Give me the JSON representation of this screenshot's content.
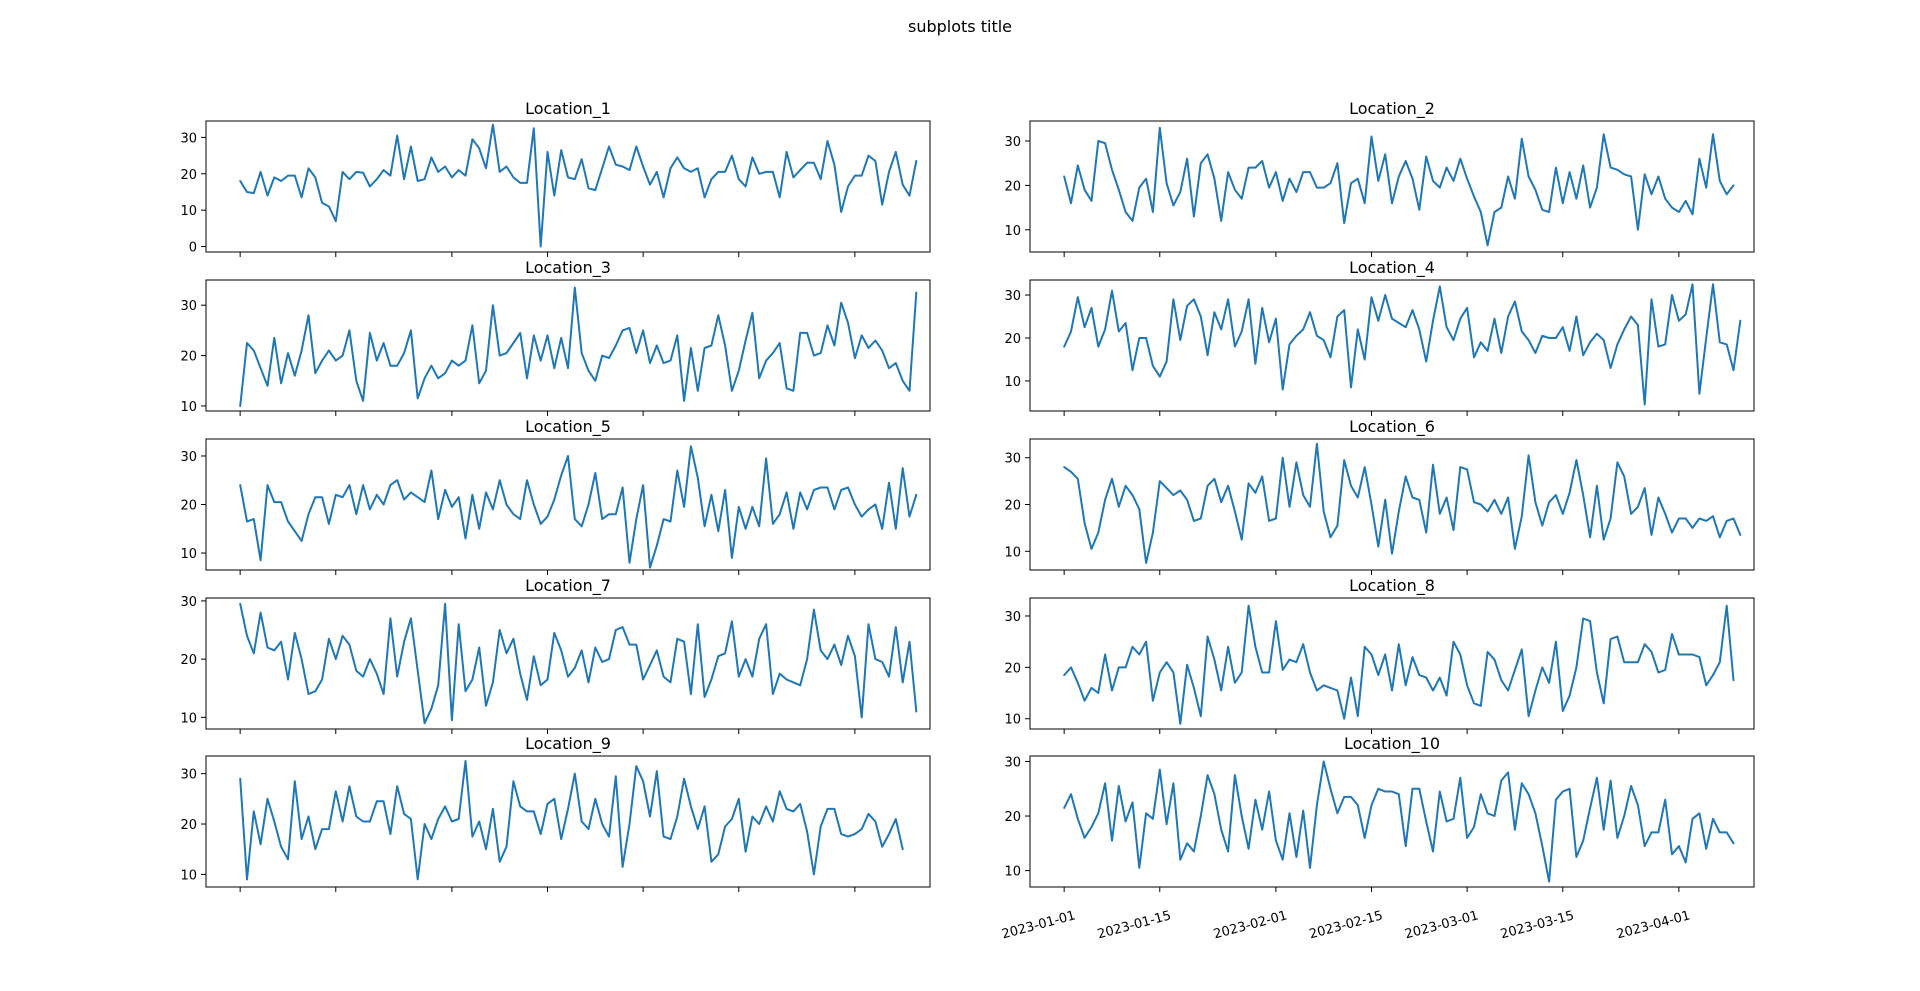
{
  "figure": {
    "suptitle": "subplots title"
  },
  "colors": {
    "series": "#1f77b4"
  },
  "chart_data": [
    {
      "type": "line",
      "title": "Location_1",
      "x_start": "2023-01-01",
      "x_step_days": 1,
      "xlim": [
        "2022-12-27",
        "2023-04-12"
      ],
      "ylim": [
        -1.5,
        34.5
      ],
      "yticks": [
        0,
        10,
        20,
        30
      ],
      "xticks": [
        "2023-01-01",
        "2023-01-15",
        "2023-02-01",
        "2023-02-15",
        "2023-03-01",
        "2023-03-15",
        "2023-04-01"
      ],
      "show_xticklabels": false,
      "values": [
        18,
        15,
        14.7,
        20.5,
        14,
        19,
        18,
        19.5,
        19.5,
        13.5,
        21.5,
        19,
        12,
        11,
        7,
        20.5,
        18.5,
        20.5,
        20.3,
        16.5,
        18.5,
        21,
        19.5,
        30.5,
        18.5,
        27.5,
        18,
        18.5,
        24.5,
        20.5,
        22,
        19,
        21,
        19.5,
        29.5,
        27,
        21.5,
        33.5,
        20.5,
        22,
        19,
        17.5,
        17.5,
        32.5,
        0,
        26,
        14,
        26.5,
        19,
        18.5,
        24,
        16,
        15.5,
        21.5,
        27.5,
        22.5,
        22,
        21,
        27.5,
        22,
        17,
        20.5,
        13.5,
        21.5,
        24.5,
        21.5,
        20.5,
        21.5,
        13.5,
        18.5,
        20.5,
        20.5,
        25,
        18.5,
        16.5,
        24.5,
        20,
        20.5,
        20.5,
        13.5,
        26,
        19,
        21,
        23,
        23,
        18.5,
        29,
        22.5,
        9.5,
        16.5,
        19.5,
        19.5,
        25,
        23.5,
        11.5,
        20.5,
        26,
        17,
        14,
        23.5
      ]
    },
    {
      "type": "line",
      "title": "Location_2",
      "x_start": "2023-01-01",
      "x_step_days": 1,
      "xlim": [
        "2022-12-27",
        "2023-04-12"
      ],
      "ylim": [
        5,
        34.5
      ],
      "yticks": [
        10,
        20,
        30
      ],
      "xticks": [
        "2023-01-01",
        "2023-01-15",
        "2023-02-01",
        "2023-02-15",
        "2023-03-01",
        "2023-03-15",
        "2023-04-01"
      ],
      "show_xticklabels": false,
      "values": [
        22,
        16,
        24.5,
        19,
        16.5,
        30,
        29.5,
        23.5,
        19,
        14,
        12,
        19.5,
        21.5,
        14,
        33,
        20.5,
        15.5,
        18.5,
        26,
        13,
        25,
        27,
        21.5,
        12,
        23,
        19,
        17,
        24,
        24,
        25.5,
        19.5,
        23,
        16.5,
        21.5,
        18.5,
        23,
        23,
        19.5,
        19.5,
        20.5,
        25,
        11.5,
        20.5,
        21.5,
        16,
        31,
        21,
        27,
        16,
        22,
        25.5,
        21.5,
        14.5,
        26.5,
        21,
        19.5,
        24,
        21,
        26,
        21.5,
        17.5,
        14,
        6.5,
        14,
        15,
        22,
        17,
        30.5,
        22,
        19,
        14.5,
        14,
        24,
        16,
        23,
        17,
        24.5,
        15,
        19.5,
        31.5,
        24,
        23.5,
        22.5,
        22,
        10,
        22.5,
        18,
        22,
        17,
        15,
        14,
        16.5,
        13.5,
        26,
        19.5,
        31.5,
        21,
        18,
        20
      ]
    },
    {
      "type": "line",
      "title": "Location_3",
      "x_start": "2023-01-01",
      "x_step_days": 1,
      "xlim": [
        "2022-12-27",
        "2023-04-12"
      ],
      "ylim": [
        9,
        35
      ],
      "yticks": [
        10,
        20,
        30
      ],
      "xticks": [
        "2023-01-01",
        "2023-01-15",
        "2023-02-01",
        "2023-02-15",
        "2023-03-01",
        "2023-03-15",
        "2023-04-01"
      ],
      "show_xticklabels": false,
      "values": [
        10,
        22.5,
        21,
        17.5,
        14,
        23.5,
        14.5,
        20.5,
        16,
        21,
        28,
        16.5,
        19,
        21,
        19,
        20,
        25,
        15,
        11,
        24.5,
        19,
        22.5,
        18,
        18,
        20.5,
        25,
        11.5,
        15.5,
        18,
        15.5,
        16.5,
        19,
        18,
        19,
        26,
        14.5,
        17,
        30,
        20,
        20.5,
        22.5,
        24.5,
        15.5,
        24,
        19,
        24,
        17.5,
        23.5,
        17.5,
        33.5,
        20.5,
        17,
        15,
        20,
        19.5,
        22,
        25,
        25.5,
        20.5,
        25,
        18.5,
        22,
        18.5,
        19,
        24,
        11,
        21.5,
        13,
        21.5,
        22,
        28,
        22,
        13,
        17,
        23,
        28.5,
        15.5,
        19,
        20.5,
        22.5,
        13.5,
        13,
        24.5,
        24.5,
        20,
        20.5,
        26,
        22,
        30.5,
        26.5,
        19.5,
        24,
        21.5,
        23,
        21,
        17.5,
        18.5,
        15,
        13,
        32.5
      ]
    },
    {
      "type": "line",
      "title": "Location_4",
      "x_start": "2023-01-01",
      "x_step_days": 1,
      "xlim": [
        "2022-12-27",
        "2023-04-12"
      ],
      "ylim": [
        3,
        33.5
      ],
      "yticks": [
        10,
        20,
        30
      ],
      "xticks": [
        "2023-01-01",
        "2023-01-15",
        "2023-02-01",
        "2023-02-15",
        "2023-03-01",
        "2023-03-15",
        "2023-04-01"
      ],
      "show_xticklabels": false,
      "values": [
        18,
        21.5,
        29.5,
        22.5,
        27,
        18,
        22,
        31,
        21.5,
        23.5,
        12.5,
        20,
        20,
        13.5,
        11,
        14.5,
        29,
        19.5,
        27.5,
        29,
        25,
        16,
        26,
        22,
        29,
        18,
        21.5,
        29,
        14,
        27,
        19,
        24.5,
        8,
        18.5,
        20.5,
        22,
        26,
        20.5,
        19.5,
        15.5,
        25,
        26.5,
        8.5,
        22,
        15,
        29.5,
        24,
        30,
        24.5,
        23.5,
        22.5,
        26.5,
        22,
        14.5,
        24,
        32,
        22.5,
        19.5,
        24.5,
        27,
        15.5,
        19,
        17,
        24.5,
        16.5,
        25,
        28.5,
        21.5,
        19.5,
        16.5,
        20.5,
        20,
        20,
        22.5,
        17,
        25,
        16,
        19,
        21,
        19.5,
        13,
        18.5,
        22,
        25,
        23,
        4.5,
        29,
        18,
        18.5,
        30,
        24,
        25.5,
        32.5,
        7,
        20,
        32.5,
        19,
        18.5,
        12.5,
        24
      ]
    },
    {
      "type": "line",
      "title": "Location_5",
      "x_start": "2023-01-01",
      "x_step_days": 1,
      "xlim": [
        "2022-12-27",
        "2023-04-12"
      ],
      "ylim": [
        6.5,
        33.5
      ],
      "yticks": [
        10,
        20,
        30
      ],
      "xticks": [
        "2023-01-01",
        "2023-01-15",
        "2023-02-01",
        "2023-02-15",
        "2023-03-01",
        "2023-03-15",
        "2023-04-01"
      ],
      "show_xticklabels": false,
      "values": [
        24,
        16.5,
        17,
        8.5,
        24,
        20.5,
        20.5,
        16.5,
        14.5,
        12.5,
        18,
        21.5,
        21.5,
        16,
        22,
        21.5,
        24,
        18,
        24,
        19,
        22,
        20,
        24,
        25,
        21,
        22.5,
        21.5,
        20.5,
        27,
        17,
        23,
        19.5,
        21.5,
        13,
        22,
        15,
        22.5,
        19,
        25,
        20,
        18,
        17,
        25,
        20,
        16,
        17.5,
        21,
        26,
        30,
        17,
        15.5,
        20,
        26.5,
        17,
        18,
        18,
        23.5,
        8,
        17,
        24,
        7,
        11.5,
        17,
        16.5,
        27,
        19.5,
        32,
        25.5,
        15.5,
        22,
        14.5,
        23,
        9,
        19.5,
        15,
        19.5,
        15.5,
        29.5,
        16,
        18,
        22.5,
        15,
        22.5,
        19,
        23,
        23.5,
        23.5,
        19,
        23,
        23.5,
        20,
        17.5,
        19,
        20,
        15,
        24.5,
        15,
        27.5,
        17.5,
        22
      ]
    },
    {
      "type": "line",
      "title": "Location_6",
      "x_start": "2023-01-01",
      "x_step_days": 1,
      "xlim": [
        "2022-12-27",
        "2023-04-12"
      ],
      "ylim": [
        6,
        34
      ],
      "yticks": [
        10,
        20,
        30
      ],
      "xticks": [
        "2023-01-01",
        "2023-01-15",
        "2023-02-01",
        "2023-02-15",
        "2023-03-01",
        "2023-03-15",
        "2023-04-01"
      ],
      "show_xticklabels": false,
      "values": [
        28,
        27,
        25.5,
        16,
        10.5,
        14,
        21,
        25.5,
        19.5,
        24,
        22,
        19,
        7.5,
        14,
        25,
        23.5,
        22,
        23,
        21,
        16.5,
        17,
        24,
        25.5,
        20.5,
        24,
        18.5,
        12.5,
        24.5,
        22.5,
        26,
        16.5,
        17,
        30,
        19.5,
        29,
        22,
        19.5,
        33,
        18.5,
        13,
        15.5,
        29.5,
        24,
        21.5,
        28,
        20,
        11,
        21,
        9.5,
        18.5,
        26,
        21.5,
        21,
        14,
        28.5,
        18,
        21.5,
        14.5,
        28,
        27.5,
        20.5,
        20,
        18.5,
        21,
        18,
        21.5,
        10.5,
        17.5,
        30.5,
        20.5,
        15.5,
        20.5,
        22,
        18,
        22.5,
        29.5,
        22,
        13,
        24,
        12.5,
        17,
        29,
        26,
        18,
        19.5,
        23.5,
        13.5,
        21.5,
        18,
        14,
        17,
        17,
        15,
        17,
        16.5,
        17.5,
        13,
        16.5,
        17,
        13.5
      ]
    },
    {
      "type": "line",
      "title": "Location_7",
      "x_start": "2023-01-01",
      "x_step_days": 1,
      "xlim": [
        "2022-12-27",
        "2023-04-12"
      ],
      "ylim": [
        8,
        30.5
      ],
      "yticks": [
        10,
        20,
        30
      ],
      "xticks": [
        "2023-01-01",
        "2023-01-15",
        "2023-02-01",
        "2023-02-15",
        "2023-03-01",
        "2023-03-15",
        "2023-04-01"
      ],
      "show_xticklabels": false,
      "values": [
        29.5,
        24,
        21,
        28,
        22,
        21.5,
        23,
        16.5,
        24.5,
        20,
        14,
        14.5,
        16.5,
        23.5,
        20,
        24,
        22.5,
        18,
        17,
        20,
        17.5,
        14,
        27,
        17,
        23,
        27,
        18,
        9,
        11.5,
        15.5,
        29.5,
        9.5,
        26,
        14.5,
        16.5,
        22,
        12,
        16,
        25,
        21,
        23.5,
        17.5,
        13,
        20.5,
        15.5,
        16.5,
        24.5,
        21.5,
        17,
        18.5,
        21.5,
        16,
        22,
        19.5,
        20,
        25,
        25.5,
        22.5,
        22.5,
        16.5,
        19,
        21.5,
        17,
        16,
        23.5,
        23,
        14,
        26,
        13.5,
        16.5,
        20.5,
        21,
        26.5,
        17,
        20,
        17,
        23.5,
        26,
        14,
        17.5,
        16.5,
        16,
        15.5,
        20,
        28.5,
        21.5,
        20,
        22.5,
        19,
        24,
        20.5,
        10,
        26,
        20,
        19.5,
        17,
        25.5,
        16,
        23,
        11
      ]
    },
    {
      "type": "line",
      "title": "Location_8",
      "x_start": "2023-01-01",
      "x_step_days": 1,
      "xlim": [
        "2022-12-27",
        "2023-04-12"
      ],
      "ylim": [
        8,
        33.5
      ],
      "yticks": [
        10,
        20,
        30
      ],
      "xticks": [
        "2023-01-01",
        "2023-01-15",
        "2023-02-01",
        "2023-02-15",
        "2023-03-01",
        "2023-03-15",
        "2023-04-01"
      ],
      "show_xticklabels": false,
      "values": [
        18.5,
        20,
        17,
        13.5,
        16,
        15,
        22.5,
        15.5,
        20,
        20,
        24,
        22.5,
        25,
        13.5,
        19,
        21,
        19,
        9,
        20.5,
        16,
        10.5,
        26,
        21.5,
        15.5,
        24,
        17,
        19,
        32,
        24,
        19,
        19,
        29,
        19.5,
        21.5,
        21,
        24.5,
        19,
        15.5,
        16.5,
        16,
        15.5,
        10,
        18,
        10.5,
        24,
        22.5,
        18.5,
        22.5,
        15.5,
        24.5,
        16.5,
        22,
        18.5,
        18,
        15.5,
        18,
        14.5,
        25,
        22.5,
        16.5,
        13,
        12.5,
        23,
        21.5,
        17.5,
        15.5,
        19.5,
        23.5,
        10.5,
        15.5,
        20,
        17,
        25,
        11.5,
        14.5,
        20,
        29.5,
        29,
        19,
        13,
        25.5,
        26,
        21,
        21,
        21,
        24.5,
        23,
        19,
        19.5,
        26.5,
        22.5,
        22.5,
        22.5,
        22,
        16.5,
        18.5,
        21,
        32,
        17.5
      ]
    },
    {
      "type": "line",
      "title": "Location_9",
      "x_start": "2023-01-01",
      "x_step_days": 1,
      "xlim": [
        "2022-12-27",
        "2023-04-12"
      ],
      "ylim": [
        7.5,
        33.5
      ],
      "yticks": [
        10,
        20,
        30
      ],
      "xticks": [
        "2023-01-01",
        "2023-01-15",
        "2023-02-01",
        "2023-02-15",
        "2023-03-01",
        "2023-03-15",
        "2023-04-01"
      ],
      "show_xticklabels": false,
      "values": [
        29,
        9,
        22.5,
        16,
        25,
        20.5,
        15.5,
        13,
        28.5,
        17,
        21.5,
        15,
        19,
        19,
        26.5,
        20.5,
        27.5,
        21.5,
        20.5,
        20.5,
        24.5,
        24.5,
        18,
        27.5,
        22,
        21,
        9,
        20,
        17,
        21,
        23.5,
        20.5,
        21,
        32.5,
        17.5,
        20.5,
        15,
        23,
        12.5,
        15.5,
        28.5,
        23.5,
        22.5,
        22.5,
        18,
        24,
        25,
        17,
        23,
        30,
        20.5,
        19,
        25,
        20,
        17.5,
        29.5,
        11.5,
        20,
        31.5,
        28.5,
        21.5,
        30.5,
        17.5,
        17,
        21.5,
        29,
        23.5,
        19,
        23.5,
        12.5,
        14,
        19.5,
        21,
        25,
        14.5,
        21.5,
        20,
        23.5,
        20.5,
        26.5,
        23,
        22.5,
        24,
        18.5,
        10,
        19.5,
        23,
        23,
        18,
        17.5,
        18,
        19,
        22,
        20.5,
        15.5,
        18,
        21,
        15
      ]
    },
    {
      "type": "line",
      "title": "Location_10",
      "x_start": "2023-01-01",
      "x_step_days": 1,
      "xlim": [
        "2022-12-27",
        "2023-04-12"
      ],
      "ylim": [
        7,
        31
      ],
      "yticks": [
        10,
        20,
        30
      ],
      "xticks": [
        "2023-01-01",
        "2023-01-15",
        "2023-02-01",
        "2023-02-15",
        "2023-03-01",
        "2023-03-15",
        "2023-04-01"
      ],
      "show_xticklabels": true,
      "values": [
        21.5,
        24,
        19.5,
        16,
        18,
        20.5,
        26,
        15.5,
        25.5,
        19,
        22.5,
        10.5,
        20.5,
        19.5,
        28.5,
        18.5,
        26,
        12,
        15,
        13.5,
        20,
        27.5,
        24,
        17.5,
        13.5,
        27.5,
        20,
        14,
        23,
        17.5,
        24.5,
        15.5,
        12,
        20.5,
        12.5,
        21,
        10.5,
        22,
        30,
        25,
        20.5,
        23.5,
        23.5,
        22,
        16,
        22,
        25,
        24.5,
        24.5,
        24,
        14.5,
        25,
        25,
        19,
        13.5,
        24.5,
        19,
        19.5,
        27,
        16,
        18,
        24,
        20.5,
        20,
        26.5,
        28,
        17.5,
        26,
        24,
        20.5,
        14.5,
        8,
        23,
        24.5,
        25,
        12.5,
        15.5,
        21.5,
        27,
        17.5,
        26.5,
        16,
        20,
        25.5,
        22,
        14.5,
        17,
        17,
        23,
        13,
        14.5,
        11.5,
        19.5,
        20.5,
        14,
        19.5,
        17,
        17,
        15
      ]
    }
  ]
}
